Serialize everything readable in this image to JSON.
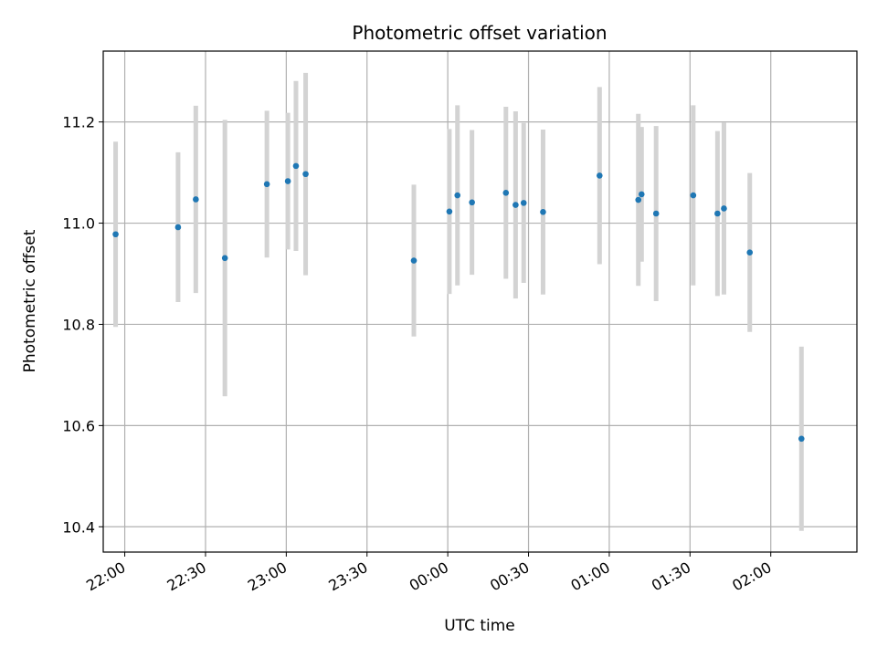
{
  "chart_data": {
    "type": "scatter",
    "title": "Photometric offset variation",
    "xlabel": "UTC time",
    "ylabel": "Photometric offset",
    "xlim": [
      "21:52",
      "02:32"
    ],
    "ylim": [
      10.35,
      11.34
    ],
    "grid": true,
    "x_ticks": [
      "22:00",
      "22:30",
      "23:00",
      "23:30",
      "00:00",
      "00:30",
      "01:00",
      "01:30",
      "02:00"
    ],
    "y_ticks": [
      "10.4",
      "10.6",
      "10.8",
      "11.0",
      "11.2"
    ],
    "colors": {
      "point": "#1f77b4",
      "errorbar": "#d3d3d3",
      "grid": "#b0b0b0"
    },
    "points": [
      {
        "x": "21:56:36",
        "y": 10.978,
        "yerr": 0.183
      },
      {
        "x": "22:19:48",
        "y": 10.992,
        "yerr": 0.148
      },
      {
        "x": "22:26:24",
        "y": 11.047,
        "yerr": 0.185
      },
      {
        "x": "22:37:12",
        "y": 10.931,
        "yerr": 0.273
      },
      {
        "x": "22:52:48",
        "y": 11.077,
        "yerr": 0.145
      },
      {
        "x": "23:00:36",
        "y": 11.083,
        "yerr": 0.135
      },
      {
        "x": "23:03:36",
        "y": 11.113,
        "yerr": 0.168
      },
      {
        "x": "23:07:12",
        "y": 11.097,
        "yerr": 0.2
      },
      {
        "x": "23:47:24",
        "y": 10.926,
        "yerr": 0.15
      },
      {
        "x": "00:00:36",
        "y": 11.023,
        "yerr": 0.163
      },
      {
        "x": "00:03:36",
        "y": 11.055,
        "yerr": 0.178
      },
      {
        "x": "00:09:00",
        "y": 11.041,
        "yerr": 0.143
      },
      {
        "x": "00:21:36",
        "y": 11.06,
        "yerr": 0.17
      },
      {
        "x": "00:25:12",
        "y": 11.036,
        "yerr": 0.185
      },
      {
        "x": "00:28:12",
        "y": 11.04,
        "yerr": 0.158
      },
      {
        "x": "00:35:24",
        "y": 11.022,
        "yerr": 0.163
      },
      {
        "x": "00:56:24",
        "y": 11.094,
        "yerr": 0.175
      },
      {
        "x": "01:10:48",
        "y": 11.046,
        "yerr": 0.17
      },
      {
        "x": "01:12:00",
        "y": 11.057,
        "yerr": 0.133
      },
      {
        "x": "01:17:24",
        "y": 11.019,
        "yerr": 0.173
      },
      {
        "x": "01:31:12",
        "y": 11.055,
        "yerr": 0.178
      },
      {
        "x": "01:40:12",
        "y": 11.019,
        "yerr": 0.163
      },
      {
        "x": "01:42:36",
        "y": 11.029,
        "yerr": 0.17
      },
      {
        "x": "01:52:12",
        "y": 10.942,
        "yerr": 0.157
      },
      {
        "x": "02:11:24",
        "y": 10.574,
        "yerr": 0.182
      }
    ]
  }
}
